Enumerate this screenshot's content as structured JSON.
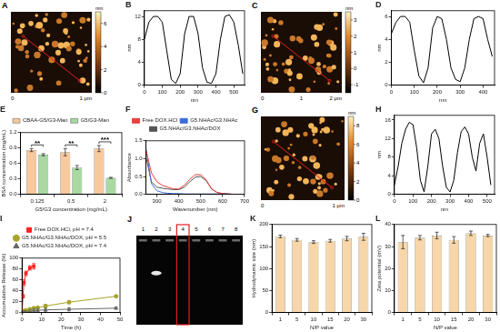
{
  "chart_data": [
    {
      "type": "image",
      "title": "A",
      "x_labels": [
        "0",
        "1 μm"
      ],
      "colorbar": {
        "title": "nm",
        "range": [
          0,
          7
        ],
        "ticks": [
          0,
          2,
          4,
          6
        ]
      }
    },
    {
      "type": "line",
      "title": "B",
      "x_label": "nm",
      "y_label": "nm",
      "x": [
        0,
        25,
        50,
        75,
        100,
        125,
        150,
        175,
        200,
        225,
        250,
        275,
        300,
        325,
        350,
        375,
        400,
        425,
        450,
        475,
        500,
        525,
        550
      ],
      "values": [
        8,
        11,
        12,
        12,
        11,
        6,
        1,
        0.3,
        2,
        9,
        12,
        12,
        9,
        3,
        0.5,
        0.3,
        2,
        8,
        12,
        12.3,
        11,
        7,
        2
      ],
      "color": "#000000",
      "xlim": [
        0,
        560
      ],
      "xticks": [
        0,
        100,
        200,
        300,
        400,
        500
      ],
      "ylim": [
        0,
        13
      ],
      "yticks": [
        0,
        4,
        8,
        12
      ],
      "grid": false
    },
    {
      "type": "image",
      "title": "C",
      "x_labels": [
        "0",
        "1",
        "2 μm"
      ],
      "colorbar": {
        "title": "nm",
        "range": [
          -1.5,
          3.5
        ],
        "ticks": [
          -1,
          0,
          1,
          2,
          3
        ]
      }
    },
    {
      "type": "line",
      "title": "D",
      "x_label": "nm",
      "y_label": "nm",
      "x": [
        0,
        20,
        40,
        60,
        80,
        100,
        120,
        140,
        160,
        180,
        200,
        220,
        240,
        260,
        280,
        300,
        320,
        340,
        360,
        380,
        400,
        420,
        440
      ],
      "values": [
        4.5,
        5.5,
        6,
        6,
        5.5,
        3,
        0.8,
        0.2,
        1.5,
        5,
        6,
        5.8,
        4,
        1.5,
        0.5,
        0.3,
        1.5,
        4,
        5.8,
        6,
        5.8,
        4,
        2.5
      ],
      "color": "#000000",
      "xlim": [
        0,
        450
      ],
      "xticks": [
        0,
        100,
        200,
        300,
        400
      ],
      "ylim": [
        0,
        6.5
      ],
      "yticks": [
        0,
        2,
        4,
        6
      ],
      "grid": false
    },
    {
      "type": "bar",
      "title": "E",
      "x_label": "G5/G3 concentration (mg/mL)",
      "y_label": "BSA concentration (mg/mL)",
      "categories": [
        "0.125",
        "0.5",
        "2"
      ],
      "series": [
        {
          "name": "CBAA-G5/G3-Man",
          "color": "#f8c99c",
          "values": [
            0.86,
            0.82,
            0.89
          ],
          "errors": [
            0.03,
            0.07,
            0.06
          ]
        },
        {
          "name": "G5/G3-Man",
          "color": "#a9d9a1",
          "values": [
            0.77,
            0.52,
            0.32
          ],
          "errors": [
            0.02,
            0.04,
            0.01
          ]
        }
      ],
      "ylim": [
        0,
        1.2
      ],
      "yticks": [
        {
          "value": 0,
          "label": "0.0"
        },
        0.3,
        0.6,
        0.9,
        1.2
      ],
      "legend": "top",
      "grid": false,
      "annotations": [
        {
          "category": "0.125",
          "text": "**"
        },
        {
          "category": "0.5",
          "text": "**"
        },
        {
          "category": "2",
          "text": "***"
        }
      ]
    },
    {
      "type": "line",
      "title": "F",
      "x_label": "Wavenumber (nm)",
      "y_label": "Absorbance",
      "x": [
        250,
        275,
        300,
        325,
        350,
        375,
        400,
        425,
        450,
        475,
        500,
        525,
        550,
        575,
        600,
        625,
        650,
        675,
        700
      ],
      "series": [
        {
          "name": "Free DOX.HCl",
          "color": "#e8413c",
          "values": [
            1.25,
            0.6,
            0.35,
            0.25,
            0.2,
            0.15,
            0.15,
            0.25,
            0.42,
            0.55,
            0.55,
            0.4,
            0.15,
            0.05,
            0.02,
            0.01,
            0,
            0,
            0
          ]
        },
        {
          "name": "G5.NHAc/G3.NHAc",
          "color": "#3a6fd8",
          "values": [
            1.3,
            0.3,
            0.1,
            0.05,
            0.03,
            0.02,
            0.02,
            0.01,
            0.01,
            0.01,
            0.01,
            0.01,
            0.01,
            0.01,
            0.01,
            0.01,
            0,
            0,
            0
          ]
        },
        {
          "name": "G5.NHAc/G3.NHAc/DOX",
          "color": "#555555",
          "values": [
            1.05,
            0.35,
            0.2,
            0.17,
            0.15,
            0.13,
            0.13,
            0.2,
            0.35,
            0.48,
            0.5,
            0.38,
            0.15,
            0.05,
            0.02,
            0.01,
            0,
            0,
            0
          ]
        }
      ],
      "xlim": [
        250,
        700
      ],
      "xticks": [
        300,
        400,
        500,
        600,
        700
      ],
      "ylim": [
        0,
        1.5
      ],
      "yticks": [
        {
          "value": 0,
          "label": "0.0"
        },
        0.5,
        {
          "value": 1,
          "label": "1.0"
        },
        1.5
      ],
      "legend": "top",
      "grid": false
    },
    {
      "type": "image",
      "title": "G",
      "x_labels": [
        "0",
        "1 μm"
      ],
      "colorbar": {
        "title": "nm",
        "range": [
          0,
          9
        ],
        "ticks": [
          0,
          2,
          4,
          6,
          8
        ]
      }
    },
    {
      "type": "line",
      "title": "H",
      "x_label": "nm",
      "y_label": "nm",
      "x": [
        0,
        20,
        40,
        60,
        80,
        100,
        120,
        140,
        160,
        180,
        200,
        220,
        240,
        260,
        280,
        300,
        320,
        340,
        360,
        380,
        400,
        420,
        440,
        460,
        480,
        500,
        520
      ],
      "values": [
        2,
        6,
        11,
        14,
        15.5,
        15,
        10,
        3,
        0.5,
        6,
        13,
        14,
        12,
        6,
        1.5,
        0.5,
        3,
        9,
        13.5,
        14.5,
        13,
        8,
        5,
        11,
        13,
        8,
        2
      ],
      "color": "#000000",
      "xlim": [
        0,
        540
      ],
      "xticks": [
        0,
        100,
        200,
        300,
        400,
        500
      ],
      "ylim": [
        0,
        17
      ],
      "yticks": [
        0,
        4,
        8,
        12,
        16
      ],
      "grid": false
    },
    {
      "type": "line",
      "title": "I",
      "x_label": "Time (h)",
      "y_label": "Accumulative Release (%)",
      "x": [
        0,
        0.5,
        1,
        2,
        4,
        6,
        8,
        12,
        24,
        48
      ],
      "series": [
        {
          "name": "Free DOX.HCl, pH = 7.4",
          "color": "#ff2020",
          "marker": "square",
          "values": [
            0,
            30,
            55,
            72,
            82,
            85,
            null,
            null,
            null,
            null
          ],
          "errors": [
            0,
            3,
            5,
            4,
            4,
            5,
            null,
            null,
            null,
            null
          ]
        },
        {
          "name": "G5.NHAc/G3.NHAc/DOX, pH = 5.5",
          "color": "#a7a42a",
          "marker": "circle",
          "values": [
            0,
            2,
            3,
            4,
            6,
            8,
            9,
            12,
            19,
            30
          ],
          "errors": [
            0,
            1,
            1,
            1,
            2,
            2,
            2,
            3,
            3,
            1
          ]
        },
        {
          "name": "G5.NHAc/G3.NHAc/DOX, pH = 7.4",
          "color": "#666666",
          "marker": "triangle",
          "values": [
            0,
            1,
            2,
            2,
            3,
            4,
            4,
            5,
            6,
            8
          ],
          "errors": [
            0,
            1,
            1,
            1,
            2,
            3,
            3,
            3,
            3,
            2
          ]
        }
      ],
      "xlim": [
        0,
        50
      ],
      "xticks": [
        0,
        10,
        20,
        30,
        40,
        50
      ],
      "ylim": [
        0,
        100
      ],
      "yticks": [
        0,
        20,
        40,
        60,
        80,
        100
      ],
      "legend": "top",
      "grid": false
    },
    {
      "type": "image",
      "title": "J",
      "lanes": [
        "1",
        "2",
        "3",
        "4",
        "5",
        "6",
        "7",
        "8"
      ],
      "highlighted_lane": "4"
    },
    {
      "type": "bar",
      "title": "K",
      "x_label": "N/P value",
      "y_label": "Hydrodynamic size (nm)",
      "categories": [
        "1",
        "5",
        "10",
        "15",
        "20",
        "30"
      ],
      "values": [
        173,
        165,
        160,
        163,
        168,
        172
      ],
      "errors": [
        3,
        3,
        3,
        3,
        5,
        8
      ],
      "color": "#f7d7a9",
      "ylim": [
        0,
        200
      ],
      "yticks": [
        0,
        50,
        100,
        150,
        200
      ],
      "grid": false
    },
    {
      "type": "bar",
      "title": "L",
      "x_label": "N/P value",
      "y_label": "Zeta potential (mV)",
      "categories": [
        "1",
        "5",
        "10",
        "15",
        "20",
        "30"
      ],
      "values": [
        32,
        34,
        35,
        33,
        36,
        35
      ],
      "errors": [
        3,
        1,
        1.5,
        1.5,
        1,
        0.5
      ],
      "color": "#f7d7a9",
      "ylim": [
        0,
        40
      ],
      "yticks": [
        0,
        10,
        20,
        30,
        40
      ],
      "grid": false
    }
  ]
}
